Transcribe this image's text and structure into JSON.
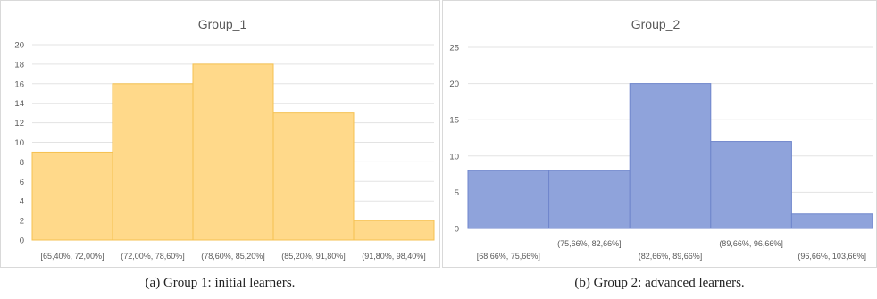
{
  "captions": [
    "(a) Group 1: initial learners.",
    "(b) Group 2: advanced learners."
  ],
  "chart_data": [
    {
      "type": "bar",
      "title": "Group_1",
      "categories": [
        "[65,40%, 72,00%]",
        "(72,00%, 78,60%]",
        "(78,60%, 85,20%]",
        "(85,20%, 91,80%]",
        "(91,80%, 98,40%]"
      ],
      "values": [
        9,
        16,
        18,
        13,
        2
      ],
      "ylim": [
        0,
        20
      ],
      "yticks": [
        0,
        2,
        4,
        6,
        8,
        10,
        12,
        14,
        16,
        18,
        20
      ],
      "label_rows": "single",
      "grid": true,
      "colors": {
        "fill": "#ffd98a",
        "stroke": "#f5c150"
      }
    },
    {
      "type": "bar",
      "title": "Group_2",
      "categories": [
        "[68,66%, 75,66%]",
        "(75,66%, 82,66%]",
        "(82,66%, 89,66%]",
        "(89,66%, 96,66%]",
        "(96,66%, 103,66%]"
      ],
      "values": [
        8,
        8,
        20,
        12,
        2
      ],
      "ylim": [
        0,
        25
      ],
      "yticks": [
        0,
        5,
        10,
        15,
        20,
        25
      ],
      "label_rows": "staggered",
      "grid": true,
      "colors": {
        "fill": "#8fa3db",
        "stroke": "#6f86cc"
      }
    }
  ]
}
